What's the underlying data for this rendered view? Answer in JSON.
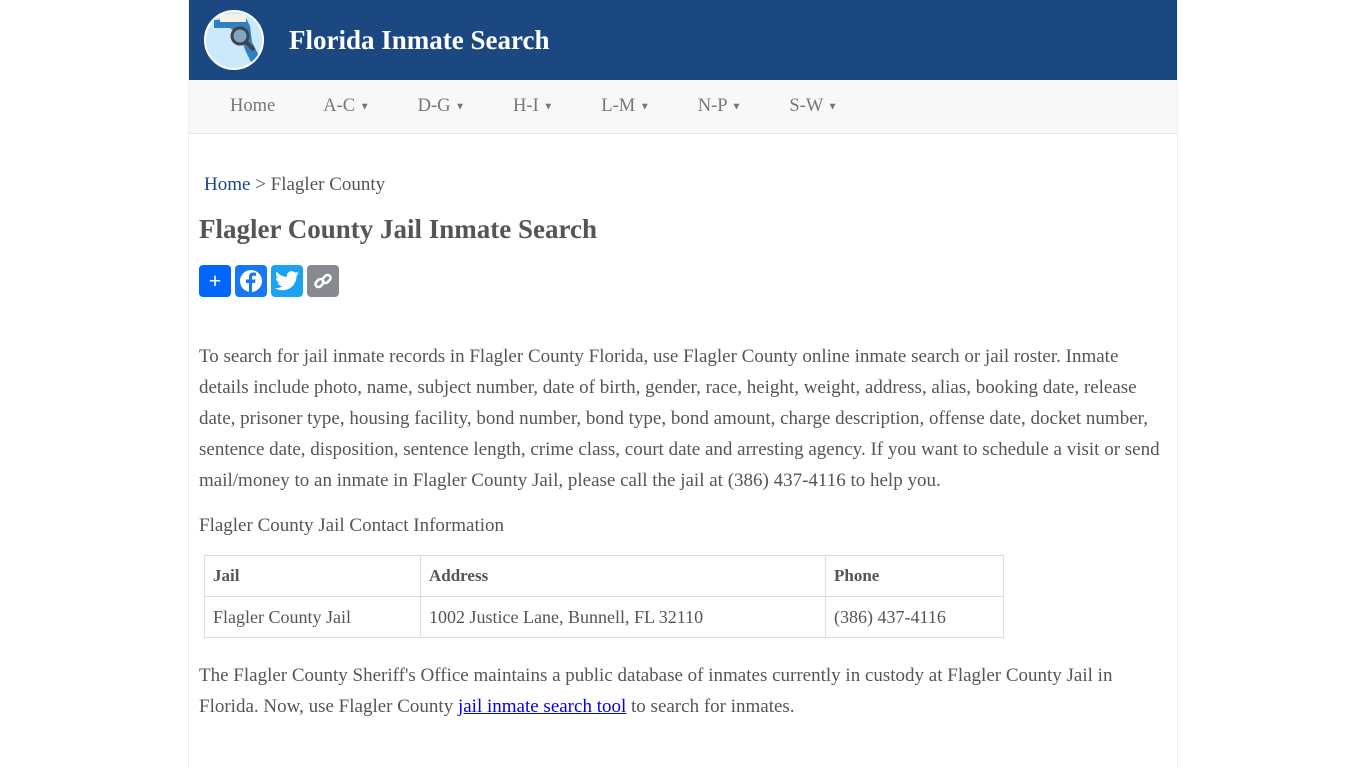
{
  "site": {
    "title": "Florida Inmate Search",
    "logo": "florida-map-magnifier-logo"
  },
  "nav": {
    "items": [
      {
        "label": "Home"
      },
      {
        "label": "A-C"
      },
      {
        "label": "D-G"
      },
      {
        "label": "H-I"
      },
      {
        "label": "L-M"
      },
      {
        "label": "N-P"
      },
      {
        "label": "S-W"
      }
    ]
  },
  "breadcrumb": {
    "home": "Home",
    "sep": ">",
    "current": "Flagler County"
  },
  "page": {
    "title": "Flagler County Jail Inmate Search",
    "intro": "To search for jail inmate records in Flagler County Florida, use Flagler County online inmate search or jail roster. Inmate details include photo, name, subject number, date of birth, gender, race, height, weight, address, alias, booking date, release date, prisoner type, housing facility, bond number, bond type, bond amount, charge description, offense date, docket number, sentence date, disposition, sentence length, crime class, court date and arresting agency. If you want to schedule a visit or send mail/money to an inmate in Flagler County Jail, please call the jail at (386) 437-4116 to help you.",
    "contact_heading": "Flagler County Jail Contact Information",
    "last_before": "The Flagler County Sheriff's Office maintains a public database of inmates currently in custody at Flagler County Jail in Florida. Now, use Flagler County ",
    "last_link": "jail inmate search tool",
    "last_after": " to search for inmates."
  },
  "share": [
    {
      "icon": "share-plus-icon",
      "color": "#0166ff"
    },
    {
      "icon": "facebook-icon",
      "color": "#1877f2"
    },
    {
      "icon": "twitter-icon",
      "color": "#1da1f2"
    },
    {
      "icon": "copy-link-icon",
      "color": "#888a91"
    }
  ],
  "table": {
    "headers": [
      "Jail",
      "Address",
      "Phone"
    ],
    "rows": [
      [
        "Flagler County Jail",
        "1002 Justice Lane, Bunnell, FL 32110",
        "(386) 437-4116"
      ]
    ]
  }
}
